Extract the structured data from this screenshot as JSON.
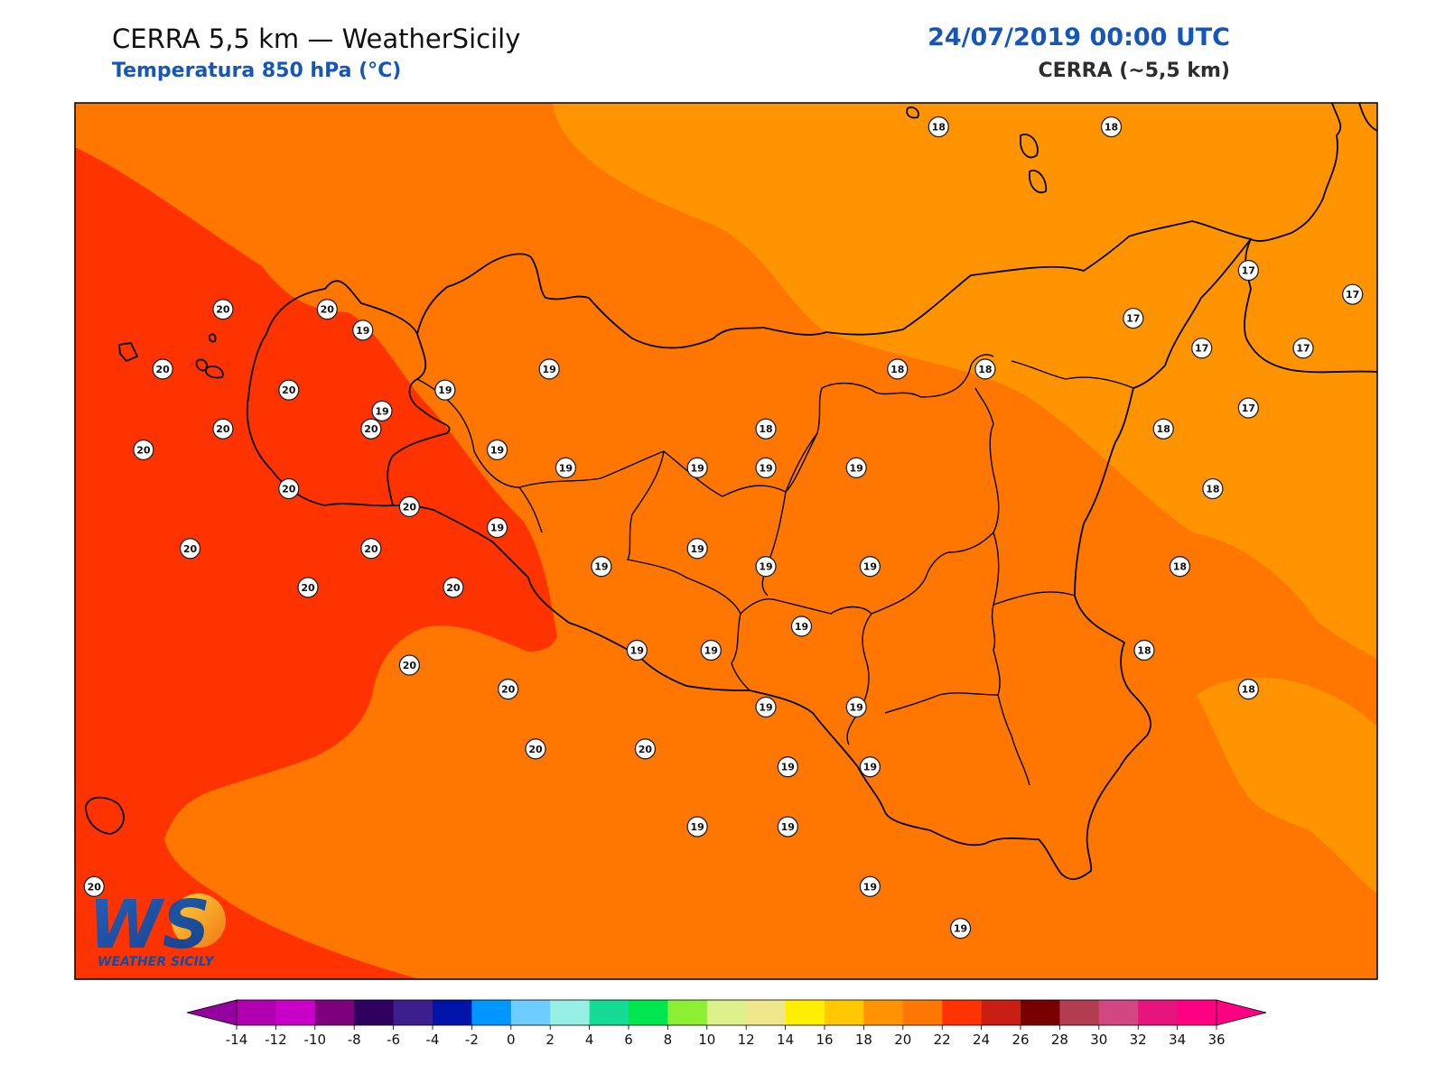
{
  "header": {
    "title": "CERRA 5,5 km — WeatherSicily",
    "subtitle": "Temperatura 850 hPa (°C)",
    "datetime": "24/07/2019 00:00 UTC",
    "model": "CERRA (~5,5 km)"
  },
  "logo": {
    "letters": "WS",
    "name": "WEATHER SICILY"
  },
  "colors": {
    "field_20_22": "#ff3300",
    "field_18_20": "#ff7700",
    "field_16_18": "#ff9400",
    "coast_line": "#000000"
  },
  "legend": {
    "ticks": [
      "-14",
      "-12",
      "-10",
      "-8",
      "-6",
      "-4",
      "-2",
      "0",
      "2",
      "4",
      "6",
      "8",
      "10",
      "12",
      "14",
      "16",
      "18",
      "20",
      "22",
      "24",
      "26",
      "28",
      "30",
      "32",
      "34",
      "36"
    ],
    "colors": [
      "#b000b0",
      "#c800c8",
      "#7d007d",
      "#300060",
      "#3c1e8c",
      "#0014aa",
      "#0096ff",
      "#6ecdff",
      "#96f0e6",
      "#14dc96",
      "#00e650",
      "#8cf032",
      "#dcf08c",
      "#f0e68c",
      "#ffee00",
      "#ffc800",
      "#ff9400",
      "#ff7700",
      "#ff3300",
      "#c81e14",
      "#780000",
      "#b43c50",
      "#d24682",
      "#e6147d",
      "#ff0082"
    ],
    "min_arrow_color": "#9600a0",
    "max_arrow_color": "#ff0082"
  },
  "stations": [
    {
      "value": "18",
      "lon": 14.95,
      "lat": 38.8
    },
    {
      "value": "18",
      "lon": 15.58,
      "lat": 38.8
    },
    {
      "value": "17",
      "lon": 16.08,
      "lat": 38.32
    },
    {
      "value": "17",
      "lon": 16.46,
      "lat": 38.24
    },
    {
      "value": "17",
      "lon": 15.66,
      "lat": 38.16
    },
    {
      "value": "17",
      "lon": 15.91,
      "lat": 38.06
    },
    {
      "value": "17",
      "lon": 16.28,
      "lat": 38.06
    },
    {
      "value": "17",
      "lon": 16.08,
      "lat": 37.86
    },
    {
      "value": "18",
      "lon": 14.8,
      "lat": 37.99
    },
    {
      "value": "18",
      "lon": 15.12,
      "lat": 37.99
    },
    {
      "value": "18",
      "lon": 14.32,
      "lat": 37.79
    },
    {
      "value": "18",
      "lon": 15.77,
      "lat": 37.79
    },
    {
      "value": "18",
      "lon": 15.95,
      "lat": 37.59
    },
    {
      "value": "18",
      "lon": 15.83,
      "lat": 37.33
    },
    {
      "value": "18",
      "lon": 15.7,
      "lat": 37.05
    },
    {
      "value": "18",
      "lon": 16.08,
      "lat": 36.92
    },
    {
      "value": "19",
      "lon": 12.85,
      "lat": 38.12
    },
    {
      "value": "19",
      "lon": 13.15,
      "lat": 37.92
    },
    {
      "value": "19",
      "lon": 12.92,
      "lat": 37.85
    },
    {
      "value": "19",
      "lon": 13.53,
      "lat": 37.99
    },
    {
      "value": "19",
      "lon": 13.34,
      "lat": 37.72
    },
    {
      "value": "19",
      "lon": 13.59,
      "lat": 37.66
    },
    {
      "value": "19",
      "lon": 14.07,
      "lat": 37.66
    },
    {
      "value": "19",
      "lon": 14.32,
      "lat": 37.66
    },
    {
      "value": "19",
      "lon": 14.65,
      "lat": 37.66
    },
    {
      "value": "19",
      "lon": 13.34,
      "lat": 37.46
    },
    {
      "value": "19",
      "lon": 13.72,
      "lat": 37.33
    },
    {
      "value": "19",
      "lon": 14.07,
      "lat": 37.39
    },
    {
      "value": "19",
      "lon": 14.32,
      "lat": 37.33
    },
    {
      "value": "19",
      "lon": 14.7,
      "lat": 37.33
    },
    {
      "value": "19",
      "lon": 14.45,
      "lat": 37.13
    },
    {
      "value": "19",
      "lon": 13.85,
      "lat": 37.05
    },
    {
      "value": "19",
      "lon": 14.12,
      "lat": 37.05
    },
    {
      "value": "19",
      "lon": 14.32,
      "lat": 36.86
    },
    {
      "value": "19",
      "lon": 14.65,
      "lat": 36.86
    },
    {
      "value": "19",
      "lon": 14.4,
      "lat": 36.66
    },
    {
      "value": "19",
      "lon": 14.7,
      "lat": 36.66
    },
    {
      "value": "19",
      "lon": 14.07,
      "lat": 36.46
    },
    {
      "value": "19",
      "lon": 14.4,
      "lat": 36.46
    },
    {
      "value": "19",
      "lon": 14.7,
      "lat": 36.26
    },
    {
      "value": "19",
      "lon": 15.03,
      "lat": 36.12
    },
    {
      "value": "20",
      "lon": 12.34,
      "lat": 38.19
    },
    {
      "value": "20",
      "lon": 12.72,
      "lat": 38.19
    },
    {
      "value": "20",
      "lon": 12.12,
      "lat": 37.99
    },
    {
      "value": "20",
      "lon": 12.58,
      "lat": 37.92
    },
    {
      "value": "20",
      "lon": 12.34,
      "lat": 37.79
    },
    {
      "value": "20",
      "lon": 12.88,
      "lat": 37.79
    },
    {
      "value": "20",
      "lon": 12.05,
      "lat": 37.72
    },
    {
      "value": "20",
      "lon": 12.58,
      "lat": 37.59
    },
    {
      "value": "20",
      "lon": 13.02,
      "lat": 37.53
    },
    {
      "value": "20",
      "lon": 12.22,
      "lat": 37.39
    },
    {
      "value": "20",
      "lon": 12.88,
      "lat": 37.39
    },
    {
      "value": "20",
      "lon": 13.18,
      "lat": 37.26
    },
    {
      "value": "20",
      "lon": 12.65,
      "lat": 37.26
    },
    {
      "value": "20",
      "lon": 13.02,
      "lat": 37.0
    },
    {
      "value": "20",
      "lon": 13.38,
      "lat": 36.92
    },
    {
      "value": "20",
      "lon": 13.48,
      "lat": 36.72
    },
    {
      "value": "20",
      "lon": 13.88,
      "lat": 36.72
    },
    {
      "value": "20",
      "lon": 11.87,
      "lat": 36.26
    }
  ]
}
